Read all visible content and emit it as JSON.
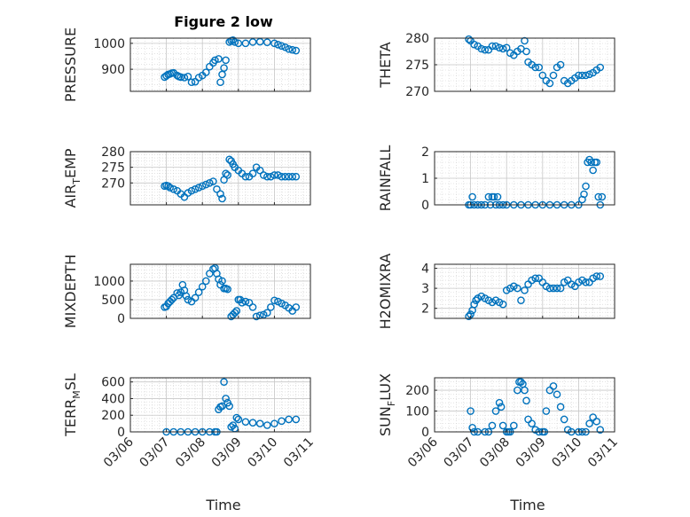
{
  "figure": {
    "title": "Figure 2 low",
    "x_axis_label": "Time",
    "x_tick_labels": [
      "03/06",
      "03/07",
      "03/08",
      "03/09",
      "03/10",
      "03/11"
    ],
    "marker_color": "#0072BD",
    "grid": "major and minor, dotted"
  },
  "chart_data": [
    {
      "type": "scatter",
      "ylabel": "PRESSURE",
      "ylim": [
        815,
        1020
      ],
      "yticks": [
        900,
        1000
      ],
      "x": [
        0.95,
        1.0,
        1.05,
        1.1,
        1.15,
        1.2,
        1.3,
        1.35,
        1.4,
        1.5,
        1.6,
        1.7,
        1.8,
        1.9,
        2.0,
        2.1,
        2.2,
        2.3,
        2.35,
        2.45,
        2.5,
        2.55,
        2.6,
        2.65,
        2.75,
        2.8,
        2.85,
        2.9,
        3.0,
        3.2,
        3.4,
        3.6,
        3.8,
        4.0,
        4.1,
        4.2,
        4.3,
        4.4,
        4.5,
        4.6
      ],
      "y": [
        870,
        875,
        880,
        882,
        885,
        886,
        876,
        872,
        870,
        868,
        872,
        850,
        852,
        868,
        876,
        888,
        910,
        925,
        935,
        940,
        850,
        880,
        905,
        935,
        1005,
        1010,
        1012,
        1005,
        1000,
        1000,
        1005,
        1006,
        1004,
        1000,
        995,
        990,
        985,
        978,
        975,
        972
      ]
    },
    {
      "type": "scatter",
      "ylabel": "THETA",
      "ylim": [
        270,
        280
      ],
      "yticks": [
        270,
        275,
        280
      ],
      "x": [
        0.95,
        1.0,
        1.1,
        1.2,
        1.3,
        1.4,
        1.5,
        1.6,
        1.7,
        1.8,
        1.9,
        2.0,
        2.1,
        2.2,
        2.3,
        2.4,
        2.5,
        2.55,
        2.6,
        2.7,
        2.8,
        2.9,
        3.0,
        3.1,
        3.2,
        3.3,
        3.4,
        3.5,
        3.6,
        3.7,
        3.8,
        3.9,
        4.0,
        4.1,
        4.2,
        4.3,
        4.4,
        4.5,
        4.6
      ],
      "y": [
        279.8,
        279.5,
        278.8,
        278.5,
        278.0,
        277.8,
        277.8,
        278.5,
        278.5,
        278.2,
        278.0,
        278.2,
        277.2,
        276.8,
        277.5,
        278.0,
        279.5,
        277.5,
        275.5,
        275.0,
        274.5,
        274.5,
        273.0,
        272.0,
        271.5,
        273.0,
        274.5,
        275.0,
        272.0,
        271.5,
        272.0,
        272.5,
        273.0,
        273.0,
        273.0,
        273.2,
        273.5,
        274.0,
        274.5
      ]
    },
    {
      "type": "scatter",
      "ylabel": "AIR_TEMP",
      "ylim": [
        263,
        280
      ],
      "yticks": [
        270,
        275,
        280
      ],
      "x": [
        0.95,
        1.0,
        1.05,
        1.1,
        1.2,
        1.3,
        1.4,
        1.5,
        1.6,
        1.7,
        1.8,
        1.9,
        2.0,
        2.1,
        2.2,
        2.3,
        2.4,
        2.5,
        2.55,
        2.6,
        2.65,
        2.7,
        2.75,
        2.8,
        2.85,
        2.9,
        3.0,
        3.1,
        3.2,
        3.3,
        3.4,
        3.5,
        3.6,
        3.7,
        3.8,
        3.9,
        4.0,
        4.1,
        4.2,
        4.3,
        4.4,
        4.5,
        4.6
      ],
      "y": [
        269.0,
        269.2,
        269.0,
        268.5,
        268.0,
        267.5,
        266.5,
        265.5,
        266.8,
        267.5,
        268.0,
        268.5,
        269.0,
        269.5,
        270.0,
        270.5,
        268.0,
        266.5,
        265.0,
        271.0,
        273.0,
        272.5,
        277.5,
        277.0,
        276.0,
        275.0,
        274.0,
        273.0,
        272.0,
        272.0,
        273.0,
        275.0,
        274.0,
        272.5,
        272.0,
        272.0,
        272.5,
        272.5,
        272.0,
        272.0,
        272.0,
        272.0,
        272.0
      ]
    },
    {
      "type": "scatter",
      "ylabel": "RAINFALL",
      "ylim": [
        0,
        2
      ],
      "yticks": [
        0,
        1,
        2
      ],
      "x": [
        0.95,
        1.0,
        1.05,
        1.1,
        1.2,
        1.3,
        1.4,
        1.5,
        1.55,
        1.6,
        1.65,
        1.7,
        1.75,
        1.8,
        1.9,
        2.0,
        2.2,
        2.4,
        2.6,
        2.8,
        3.0,
        3.2,
        3.4,
        3.6,
        3.8,
        4.0,
        4.1,
        4.15,
        4.2,
        4.25,
        4.3,
        4.35,
        4.4,
        4.45,
        4.5,
        4.55,
        4.6,
        4.65
      ],
      "y": [
        0,
        0,
        0.3,
        0,
        0,
        0,
        0,
        0.3,
        0,
        0.3,
        0.3,
        0,
        0.3,
        0,
        0,
        0,
        0,
        0,
        0,
        0,
        0,
        0,
        0,
        0,
        0,
        0,
        0.2,
        0.4,
        0.7,
        1.6,
        1.7,
        1.6,
        1.3,
        1.6,
        1.6,
        0.3,
        0,
        0.3
      ]
    },
    {
      "type": "scatter",
      "ylabel": "MIXDEPTH",
      "ylim": [
        0,
        1450
      ],
      "yticks": [
        0,
        500,
        1000
      ],
      "x": [
        0.95,
        1.0,
        1.05,
        1.1,
        1.15,
        1.2,
        1.3,
        1.35,
        1.4,
        1.45,
        1.5,
        1.55,
        1.6,
        1.7,
        1.8,
        1.9,
        2.0,
        2.1,
        2.2,
        2.3,
        2.35,
        2.4,
        2.45,
        2.5,
        2.55,
        2.6,
        2.65,
        2.7,
        2.8,
        2.85,
        2.9,
        2.95,
        3.0,
        3.05,
        3.1,
        3.2,
        3.3,
        3.4,
        3.5,
        3.6,
        3.7,
        3.8,
        3.9,
        4.0,
        4.1,
        4.2,
        4.3,
        4.4,
        4.5,
        4.6
      ],
      "y": [
        300,
        320,
        400,
        450,
        500,
        550,
        680,
        620,
        700,
        900,
        750,
        600,
        500,
        450,
        550,
        700,
        850,
        1000,
        1200,
        1320,
        1350,
        1200,
        1050,
        900,
        1000,
        800,
        800,
        780,
        50,
        100,
        150,
        200,
        500,
        500,
        420,
        450,
        420,
        300,
        50,
        80,
        100,
        150,
        300,
        480,
        450,
        400,
        350,
        280,
        200,
        300
      ]
    },
    {
      "type": "scatter",
      "ylabel": "H2OMIXRA",
      "ylim": [
        1.5,
        4.2
      ],
      "yticks": [
        2,
        3,
        4
      ],
      "x": [
        0.95,
        1.0,
        1.05,
        1.1,
        1.15,
        1.2,
        1.3,
        1.4,
        1.5,
        1.6,
        1.7,
        1.8,
        1.9,
        2.0,
        2.1,
        2.2,
        2.3,
        2.4,
        2.5,
        2.6,
        2.7,
        2.8,
        2.9,
        3.0,
        3.1,
        3.2,
        3.3,
        3.4,
        3.5,
        3.6,
        3.7,
        3.8,
        3.9,
        4.0,
        4.1,
        4.2,
        4.3,
        4.4,
        4.5,
        4.6
      ],
      "y": [
        1.6,
        1.7,
        1.9,
        2.2,
        2.4,
        2.5,
        2.6,
        2.5,
        2.4,
        2.3,
        2.4,
        2.3,
        2.2,
        2.9,
        3.0,
        3.1,
        3.0,
        2.4,
        2.9,
        3.2,
        3.4,
        3.5,
        3.5,
        3.3,
        3.1,
        3.0,
        3.0,
        3.0,
        3.0,
        3.3,
        3.4,
        3.2,
        3.1,
        3.3,
        3.4,
        3.3,
        3.3,
        3.5,
        3.6,
        3.6
      ]
    },
    {
      "type": "scatter",
      "ylabel": "TERR_MSL",
      "ylim": [
        0,
        650
      ],
      "yticks": [
        0,
        200,
        400,
        600
      ],
      "x": [
        1.0,
        1.2,
        1.4,
        1.6,
        1.8,
        2.0,
        2.2,
        2.35,
        2.4,
        2.45,
        2.5,
        2.55,
        2.6,
        2.65,
        2.7,
        2.75,
        2.8,
        2.85,
        2.9,
        2.95,
        3.0,
        3.2,
        3.4,
        3.6,
        3.8,
        4.0,
        4.2,
        4.4,
        4.6
      ],
      "y": [
        0,
        0,
        0,
        0,
        0,
        0,
        0,
        0,
        0,
        270,
        300,
        310,
        600,
        400,
        350,
        310,
        60,
        80,
        40,
        170,
        150,
        120,
        110,
        100,
        80,
        100,
        130,
        150,
        150
      ]
    },
    {
      "type": "scatter",
      "ylabel": "SUN_FLUX",
      "ylim": [
        0,
        260
      ],
      "yticks": [
        0,
        100,
        200
      ],
      "x": [
        1.0,
        1.05,
        1.1,
        1.2,
        1.4,
        1.5,
        1.6,
        1.7,
        1.8,
        1.85,
        1.9,
        2.0,
        2.05,
        2.1,
        2.2,
        2.3,
        2.35,
        2.4,
        2.45,
        2.5,
        2.55,
        2.6,
        2.7,
        2.8,
        2.9,
        3.0,
        3.05,
        3.1,
        3.2,
        3.3,
        3.4,
        3.5,
        3.6,
        3.7,
        3.8,
        4.0,
        4.1,
        4.2,
        4.3,
        4.4,
        4.5,
        4.6
      ],
      "y": [
        100,
        20,
        0,
        0,
        0,
        0,
        30,
        100,
        140,
        120,
        30,
        0,
        0,
        0,
        30,
        200,
        240,
        240,
        230,
        200,
        150,
        60,
        40,
        10,
        0,
        0,
        0,
        100,
        200,
        220,
        180,
        120,
        60,
        10,
        0,
        0,
        0,
        0,
        40,
        70,
        50,
        10
      ]
    }
  ]
}
